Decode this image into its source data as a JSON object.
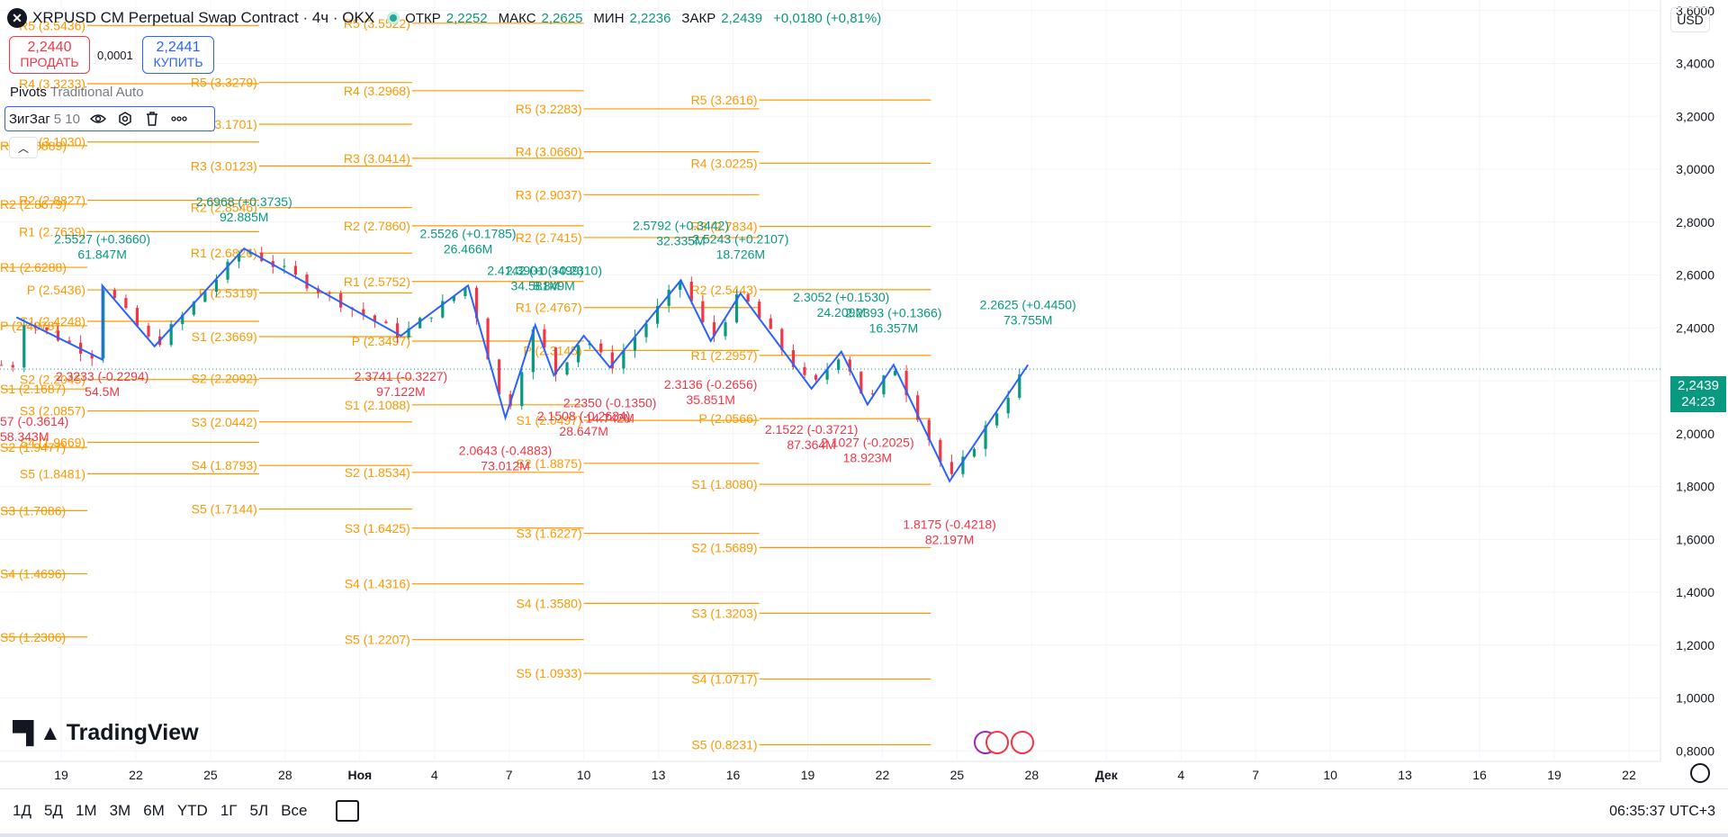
{
  "header": {
    "symbol_title": "XRPUSD CM Perpetual Swap Contract · 4ч · OKX",
    "open_label": "ОТКР",
    "open_value": "2,2252",
    "high_label": "МАКС",
    "high_value": "2,2625",
    "low_label": "МИН",
    "low_value": "2,2236",
    "close_label": "ЗАКР",
    "close_value": "2,2439",
    "change": "+0,0180 (+0,81%)"
  },
  "trade": {
    "sell_price": "2,2440",
    "sell_label": "ПРОДАТЬ",
    "spread": "0,0001",
    "buy_price": "2,2441",
    "buy_label": "КУПИТЬ"
  },
  "indicators": {
    "pivots_name": "Pivots",
    "pivots_params": "Traditional Auto",
    "zigzag_name": "ЗигЗаг",
    "zigzag_params": "5 10"
  },
  "currency": "USD",
  "current_price": {
    "price": "2,2439",
    "countdown": "24:23"
  },
  "branding": "TradingView",
  "ranges": [
    "1Д",
    "5Д",
    "1М",
    "3М",
    "6М",
    "YTD",
    "1Г",
    "5Л",
    "Все"
  ],
  "clock": "06:35:37 UTC+3",
  "colors": {
    "up": "#089981",
    "down": "#f23645",
    "pivot": "#ff9800",
    "zigzag": "#2962ff"
  },
  "chart_data": {
    "type": "candlestick",
    "title": "XRPUSD CM Perpetual Swap Contract · 4ч · OKX",
    "y_ticks": [
      "3,6000",
      "3,4000",
      "3,2000",
      "3,0000",
      "2,8000",
      "2,6000",
      "2,4000",
      "2,2000",
      "2,0000",
      "1,8000",
      "1,6000",
      "1,4000",
      "1,2000",
      "1,0000",
      "0,8000"
    ],
    "ylim": [
      0.76,
      3.64
    ],
    "x_ticks": [
      {
        "label": "19",
        "x": 0
      },
      {
        "label": "22",
        "x": 1
      },
      {
        "label": "25",
        "x": 2
      },
      {
        "label": "28",
        "x": 3
      },
      {
        "label": "Ноя",
        "x": 4
      },
      {
        "label": "4",
        "x": 5
      },
      {
        "label": "7",
        "x": 6
      },
      {
        "label": "10",
        "x": 7
      },
      {
        "label": "13",
        "x": 8
      },
      {
        "label": "16",
        "x": 9
      },
      {
        "label": "19",
        "x": 10
      },
      {
        "label": "22",
        "x": 11
      },
      {
        "label": "25",
        "x": 12
      },
      {
        "label": "28",
        "x": 13
      },
      {
        "label": "Дек",
        "x": 14
      },
      {
        "label": "4",
        "x": 15
      },
      {
        "label": "7",
        "x": 16
      },
      {
        "label": "10",
        "x": 17
      },
      {
        "label": "13",
        "x": 18
      },
      {
        "label": "16",
        "x": 19
      },
      {
        "label": "19",
        "x": 20
      },
      {
        "label": "22",
        "x": 21
      }
    ],
    "pivot_periods": [
      {
        "x0": -0.8,
        "x1": 0.35,
        "levels": [
          {
            "label": "R3 (3.0889)",
            "value": 3.0889
          },
          {
            "label": "R2 (2.8679)",
            "value": 2.8679
          },
          {
            "label": "R1 (2.6288)",
            "value": 2.6288
          },
          {
            "label": "P (2.4078)",
            "value": 2.4078
          },
          {
            "label": "S1 (2.1687)",
            "value": 2.1687
          },
          {
            "label": "S2 (1.9477)",
            "value": 1.9477
          },
          {
            "label": "S3 (1.7086)",
            "value": 1.7086
          },
          {
            "label": "S4 (1.4696)",
            "value": 1.4696
          },
          {
            "label": "S5 (1.2306)",
            "value": 1.2306
          }
        ]
      },
      {
        "x0": 0.35,
        "x1": 2.65,
        "levels": [
          {
            "label": "R5 (3.5436)",
            "value": 3.5436
          },
          {
            "label": "R4 (3.3233)",
            "value": 3.3233
          },
          {
            "label": "R3 (3.1030)",
            "value": 3.103
          },
          {
            "label": "R2 (2.8827)",
            "value": 2.8827
          },
          {
            "label": "R1 (2.7639)",
            "value": 2.7639
          },
          {
            "label": "P (2.5436)",
            "value": 2.5436
          },
          {
            "label": "S1 (2.4248)",
            "value": 2.4248
          },
          {
            "label": "S2 (2.2045)",
            "value": 2.2045
          },
          {
            "label": "S3 (2.0857)",
            "value": 2.0857
          },
          {
            "label": "S4 (1.9669)",
            "value": 1.9669
          },
          {
            "label": "S5 (1.8481)",
            "value": 1.8481
          }
        ]
      },
      {
        "x0": 2.65,
        "x1": 4.7,
        "levels": [
          {
            "label": "R5 (3.3279)",
            "value": 3.3279
          },
          {
            "label": "R4 (3.1701)",
            "value": 3.1701
          },
          {
            "label": "R3 (3.0123)",
            "value": 3.0123
          },
          {
            "label": "R2 (2.8546)",
            "value": 2.8546
          },
          {
            "label": "R1 (2.6826)",
            "value": 2.6826
          },
          {
            "label": "P (2.5319)",
            "value": 2.5319
          },
          {
            "label": "S1 (2.3669)",
            "value": 2.3669
          },
          {
            "label": "S2 (2.2092)",
            "value": 2.2092
          },
          {
            "label": "S3 (2.0442)",
            "value": 2.0442
          },
          {
            "label": "S4 (1.8793)",
            "value": 1.8793
          },
          {
            "label": "S5 (1.7144)",
            "value": 1.7144
          }
        ]
      },
      {
        "x0": 4.7,
        "x1": 7.0,
        "levels": [
          {
            "label": "R5 (3.5522)",
            "value": 3.5522
          },
          {
            "label": "R4 (3.2968)",
            "value": 3.2968
          },
          {
            "label": "R3 (3.0414)",
            "value": 3.0414
          },
          {
            "label": "R2 (2.7860)",
            "value": 2.786
          },
          {
            "label": "R1 (2.5752)",
            "value": 2.5752
          },
          {
            "label": "P (2.3497)",
            "value": 2.3497
          },
          {
            "label": "S1 (2.1088)",
            "value": 2.1088
          },
          {
            "label": "S2 (1.8534)",
            "value": 1.8534
          },
          {
            "label": "S3 (1.6425)",
            "value": 1.6425
          },
          {
            "label": "S4 (1.4316)",
            "value": 1.4316
          },
          {
            "label": "S5 (1.2207)",
            "value": 1.2207
          }
        ]
      },
      {
        "x0": 7.0,
        "x1": 9.35,
        "levels": [
          {
            "label": "R5 (3.2283)",
            "value": 3.2283
          },
          {
            "label": "R4 (3.0660)",
            "value": 3.066
          },
          {
            "label": "R3 (2.9037)",
            "value": 2.9037
          },
          {
            "label": "R2 (2.7415)",
            "value": 2.7415
          },
          {
            "label": "R1 (2.4767)",
            "value": 2.4767
          },
          {
            "label": "P (2.3145)",
            "value": 2.3145
          },
          {
            "label": "S1 (2.0497)",
            "value": 2.0497
          },
          {
            "label": "S2 (1.8875)",
            "value": 1.8875
          },
          {
            "label": "S3 (1.6227)",
            "value": 1.6227
          },
          {
            "label": "S4 (1.3580)",
            "value": 1.358
          },
          {
            "label": "S5 (1.0933)",
            "value": 1.0933
          }
        ]
      },
      {
        "x0": 9.35,
        "x1": 11.65,
        "levels": [
          {
            "label": "R5 (3.2616)",
            "value": 3.2616
          },
          {
            "label": "R4 (3.0225)",
            "value": 3.0225
          },
          {
            "label": "R3 (2.7834)",
            "value": 2.7834
          },
          {
            "label": "R2 (2.5443)",
            "value": 2.5443
          },
          {
            "label": "R1 (2.2957)",
            "value": 2.2957
          },
          {
            "label": "P (2.0566)",
            "value": 2.0566
          },
          {
            "label": "S1 (1.8080)",
            "value": 1.808
          },
          {
            "label": "S2 (1.5689)",
            "value": 1.5689
          },
          {
            "label": "S3 (1.3203)",
            "value": 1.3203
          },
          {
            "label": "S4 (1.0717)",
            "value": 1.0717
          },
          {
            "label": "S5 (0.8231)",
            "value": 0.8231
          }
        ]
      }
    ],
    "zigzag": [
      {
        "x": -0.6,
        "y": 2.44
      },
      {
        "x": 0.55,
        "y": 2.28
      },
      {
        "x": 0.55,
        "y": 2.56
      },
      {
        "x": 1.25,
        "y": 2.33
      },
      {
        "x": 2.45,
        "y": 2.7
      },
      {
        "x": 4.55,
        "y": 2.37
      },
      {
        "x": 5.45,
        "y": 2.56
      },
      {
        "x": 5.95,
        "y": 2.06
      },
      {
        "x": 6.35,
        "y": 2.41
      },
      {
        "x": 6.6,
        "y": 2.22
      },
      {
        "x": 7.0,
        "y": 2.37
      },
      {
        "x": 7.35,
        "y": 2.25
      },
      {
        "x": 8.3,
        "y": 2.58
      },
      {
        "x": 8.7,
        "y": 2.35
      },
      {
        "x": 9.1,
        "y": 2.53
      },
      {
        "x": 10.05,
        "y": 2.17
      },
      {
        "x": 10.45,
        "y": 2.31
      },
      {
        "x": 10.8,
        "y": 2.11
      },
      {
        "x": 11.15,
        "y": 2.26
      },
      {
        "x": 11.9,
        "y": 1.82
      },
      {
        "x": 12.95,
        "y": 2.26
      }
    ],
    "zigzag_labels": [
      {
        "x": 0.55,
        "y": 2.2,
        "text1": "2.3233 (-0.2294)",
        "text2": "54.5M",
        "dir": "down"
      },
      {
        "x": 0.55,
        "y": 2.72,
        "text1": "2.5527 (+0.3660)",
        "text2": "61.847M",
        "dir": "up"
      },
      {
        "x": 2.45,
        "y": 2.86,
        "text1": "2.6968 (+0.3735)",
        "text2": "92.885M",
        "dir": "up"
      },
      {
        "x": 4.55,
        "y": 2.2,
        "text1": "2.3741 (-0.3227)",
        "text2": "97.122M",
        "dir": "down"
      },
      {
        "x": 5.45,
        "y": 2.74,
        "text1": "2.5526 (+0.1785)",
        "text2": "26.466M",
        "dir": "up"
      },
      {
        "x": 5.95,
        "y": 1.92,
        "text1": "2.0643 (-0.4883)",
        "text2": "73.012M",
        "dir": "down"
      },
      {
        "x": 6.35,
        "y": 2.6,
        "text1": "2.4142 (+0.3499)",
        "text2": "34.581M",
        "dir": "up"
      },
      {
        "x": 6.6,
        "y": 2.6,
        "text1": "2.3901 (+0.2310)",
        "text2": "8.849M",
        "dir": "up"
      },
      {
        "x": 7.0,
        "y": 2.05,
        "text1": "2.1508 (-0.2634)",
        "text2": "28.647M",
        "dir": "down"
      },
      {
        "x": 7.35,
        "y": 2.1,
        "text1": "2.2350 (-0.1350)",
        "text2": "14.742M",
        "dir": "down"
      },
      {
        "x": 8.3,
        "y": 2.77,
        "text1": "2.5792 (+0.3442)",
        "text2": "32.335M",
        "dir": "up"
      },
      {
        "x": 8.7,
        "y": 2.17,
        "text1": "2.3136 (-0.2656)",
        "text2": "35.851M",
        "dir": "down"
      },
      {
        "x": 9.1,
        "y": 2.72,
        "text1": "2.5243 (+0.2107)",
        "text2": "18.726M",
        "dir": "up"
      },
      {
        "x": 10.05,
        "y": 2.0,
        "text1": "2.1522 (-0.3721)",
        "text2": "87.364M",
        "dir": "down"
      },
      {
        "x": 10.45,
        "y": 2.5,
        "text1": "2.3052 (+0.1530)",
        "text2": "24.209M",
        "dir": "up"
      },
      {
        "x": 10.8,
        "y": 1.95,
        "text1": "2.1027 (-0.2025)",
        "text2": "18.923M",
        "dir": "down"
      },
      {
        "x": 11.15,
        "y": 2.44,
        "text1": "2.2393 (+0.1366)",
        "text2": "16.357M",
        "dir": "up"
      },
      {
        "x": 11.9,
        "y": 1.64,
        "text1": "1.8175 (-0.4218)",
        "text2": "82.197M",
        "dir": "down"
      },
      {
        "x": 12.95,
        "y": 2.47,
        "text1": "2.2625 (+0.4450)",
        "text2": "73.755M",
        "dir": "up"
      }
    ],
    "partial_labels": [
      {
        "x": -0.5,
        "y": 2.03,
        "text1": "57 (-0.3614)",
        "text2": "58.343M"
      }
    ],
    "last_price": 2.2439
  }
}
